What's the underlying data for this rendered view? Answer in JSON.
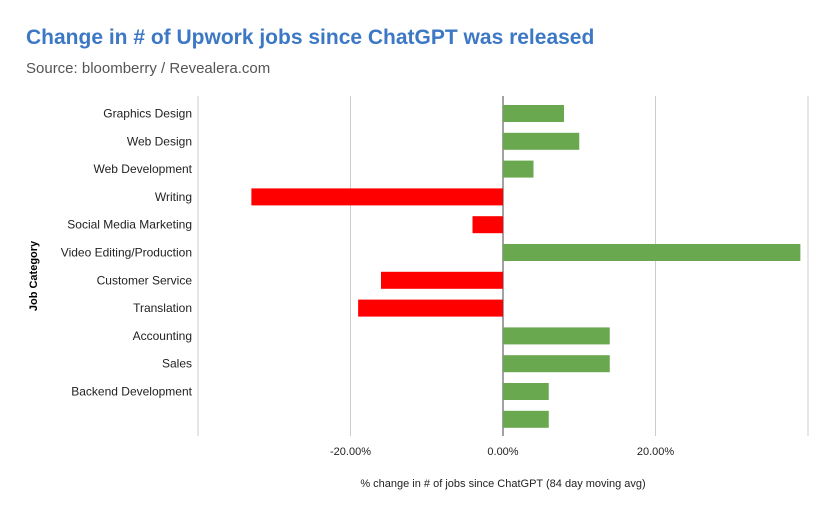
{
  "header": {
    "title": "Change in # of Upwork jobs since ChatGPT was released",
    "subtitle": "Source: bloomberry / Revealera.com"
  },
  "colors": {
    "title": "#3c78c4",
    "positive": "#6aa84f",
    "negative": "#ff0000",
    "grid": "#cccccc"
  },
  "chart_data": {
    "type": "bar",
    "orientation": "horizontal",
    "title": "Change in # of Upwork jobs since ChatGPT was released",
    "subtitle": "Source: bloomberry / Revealera.com",
    "xlabel": "% change in # of jobs since ChatGPT (84 day moving avg)",
    "ylabel": "Job Category",
    "categories": [
      "Graphics Design",
      "Web Design",
      "Web Development",
      "Writing",
      "Social Media Marketing",
      "Video Editing/Production",
      "Customer Service",
      "Translation",
      "Accounting",
      "Sales",
      "Backend Development",
      ""
    ],
    "values": [
      8.0,
      10.0,
      4.0,
      -33.0,
      -4.0,
      39.0,
      -16.0,
      -19.0,
      14.0,
      14.0,
      6.0,
      6.0
    ],
    "units": "%",
    "xlim": [
      -40,
      40
    ],
    "xticks": [
      {
        "value": -20,
        "label": "-20.00%"
      },
      {
        "value": 0,
        "label": "0.00%"
      },
      {
        "value": 20,
        "label": "20.00%"
      }
    ],
    "grid": true,
    "legend": "none"
  }
}
